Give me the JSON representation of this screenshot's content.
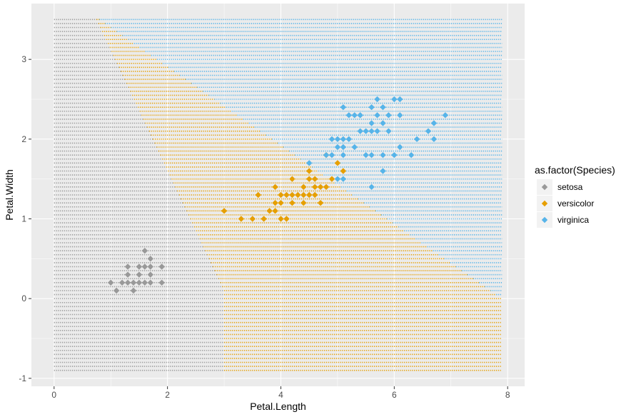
{
  "chart_data": {
    "type": "scatter",
    "title": "",
    "xlabel": "Petal.Length",
    "ylabel": "Petal.Width",
    "xlim": [
      -0.4,
      8.3
    ],
    "ylim": [
      -1.1,
      3.7
    ],
    "x_ticks": [
      0,
      2,
      4,
      6,
      8
    ],
    "y_ticks": [
      -1,
      0,
      1,
      2,
      3
    ],
    "grid": true,
    "panel_background": "#ebebeb",
    "legend": {
      "title": "as.factor(Species)",
      "placement": "right",
      "entries": [
        "setosa",
        "versicolor",
        "virginica"
      ]
    },
    "colors": {
      "setosa": "#999999",
      "versicolor": "#e69f00",
      "virginica": "#56b4e9"
    },
    "background_grid": {
      "x_range": [
        0,
        7.9
      ],
      "y_range": [
        -0.9,
        3.5
      ],
      "x_step": 0.05,
      "y_step": 0.05,
      "regions": {
        "setosa_versicolor_boundary_top_x": 1.7,
        "setosa_versicolor_boundary_bottom_x": 3.0,
        "versicolor_virginica_boundary_left": [
          0.8,
          3.5
        ],
        "versicolor_virginica_boundary_right": [
          7.9,
          0.0
        ]
      }
    },
    "series": [
      {
        "name": "setosa",
        "points": [
          [
            1.0,
            0.2
          ],
          [
            1.1,
            0.1
          ],
          [
            1.2,
            0.2
          ],
          [
            1.3,
            0.2
          ],
          [
            1.3,
            0.3
          ],
          [
            1.3,
            0.4
          ],
          [
            1.4,
            0.1
          ],
          [
            1.4,
            0.2
          ],
          [
            1.5,
            0.2
          ],
          [
            1.5,
            0.3
          ],
          [
            1.5,
            0.4
          ],
          [
            1.6,
            0.2
          ],
          [
            1.6,
            0.4
          ],
          [
            1.6,
            0.6
          ],
          [
            1.7,
            0.2
          ],
          [
            1.7,
            0.3
          ],
          [
            1.7,
            0.4
          ],
          [
            1.7,
            0.5
          ],
          [
            1.9,
            0.2
          ],
          [
            1.9,
            0.4
          ]
        ]
      },
      {
        "name": "versicolor",
        "points": [
          [
            3.0,
            1.1
          ],
          [
            3.3,
            1.0
          ],
          [
            3.5,
            1.0
          ],
          [
            3.6,
            1.3
          ],
          [
            3.7,
            1.0
          ],
          [
            3.8,
            1.1
          ],
          [
            3.9,
            1.1
          ],
          [
            3.9,
            1.2
          ],
          [
            3.9,
            1.4
          ],
          [
            4.0,
            1.0
          ],
          [
            4.0,
            1.2
          ],
          [
            4.0,
            1.3
          ],
          [
            4.1,
            1.0
          ],
          [
            4.1,
            1.3
          ],
          [
            4.2,
            1.2
          ],
          [
            4.2,
            1.3
          ],
          [
            4.2,
            1.5
          ],
          [
            4.3,
            1.3
          ],
          [
            4.4,
            1.2
          ],
          [
            4.4,
            1.3
          ],
          [
            4.4,
            1.4
          ],
          [
            4.5,
            1.3
          ],
          [
            4.5,
            1.5
          ],
          [
            4.5,
            1.6
          ],
          [
            4.6,
            1.3
          ],
          [
            4.6,
            1.4
          ],
          [
            4.6,
            1.5
          ],
          [
            4.7,
            1.2
          ],
          [
            4.7,
            1.4
          ],
          [
            4.8,
            1.4
          ],
          [
            4.8,
            1.8
          ],
          [
            4.9,
            1.5
          ],
          [
            5.0,
            1.7
          ],
          [
            5.1,
            1.6
          ]
        ]
      },
      {
        "name": "virginica",
        "points": [
          [
            4.5,
            1.7
          ],
          [
            4.8,
            1.8
          ],
          [
            4.9,
            1.8
          ],
          [
            5.0,
            1.5
          ],
          [
            5.1,
            1.5
          ],
          [
            5.1,
            1.8
          ],
          [
            5.1,
            1.9
          ],
          [
            5.1,
            2.0
          ],
          [
            5.1,
            2.4
          ],
          [
            5.2,
            2.0
          ],
          [
            5.2,
            2.3
          ],
          [
            5.3,
            1.9
          ],
          [
            5.3,
            2.3
          ],
          [
            5.4,
            2.1
          ],
          [
            5.4,
            2.3
          ],
          [
            5.5,
            1.8
          ],
          [
            5.5,
            2.1
          ],
          [
            5.6,
            1.4
          ],
          [
            5.6,
            1.8
          ],
          [
            5.6,
            2.1
          ],
          [
            5.6,
            2.2
          ],
          [
            5.6,
            2.4
          ],
          [
            5.7,
            2.1
          ],
          [
            5.7,
            2.3
          ],
          [
            5.7,
            2.5
          ],
          [
            5.8,
            1.6
          ],
          [
            5.8,
            1.8
          ],
          [
            5.8,
            2.2
          ],
          [
            5.9,
            2.1
          ],
          [
            5.9,
            2.3
          ],
          [
            6.0,
            1.8
          ],
          [
            6.0,
            2.5
          ],
          [
            6.1,
            1.9
          ],
          [
            6.1,
            2.3
          ],
          [
            6.1,
            2.5
          ],
          [
            6.3,
            1.8
          ],
          [
            6.6,
            2.1
          ],
          [
            6.7,
            2.0
          ],
          [
            6.7,
            2.2
          ],
          [
            6.9,
            2.3
          ],
          [
            4.9,
            2.0
          ],
          [
            5.0,
            2.0
          ],
          [
            5.0,
            1.9
          ],
          [
            5.8,
            2.4
          ],
          [
            5.4,
            2.3
          ],
          [
            6.4,
            2.0
          ]
        ]
      }
    ]
  }
}
